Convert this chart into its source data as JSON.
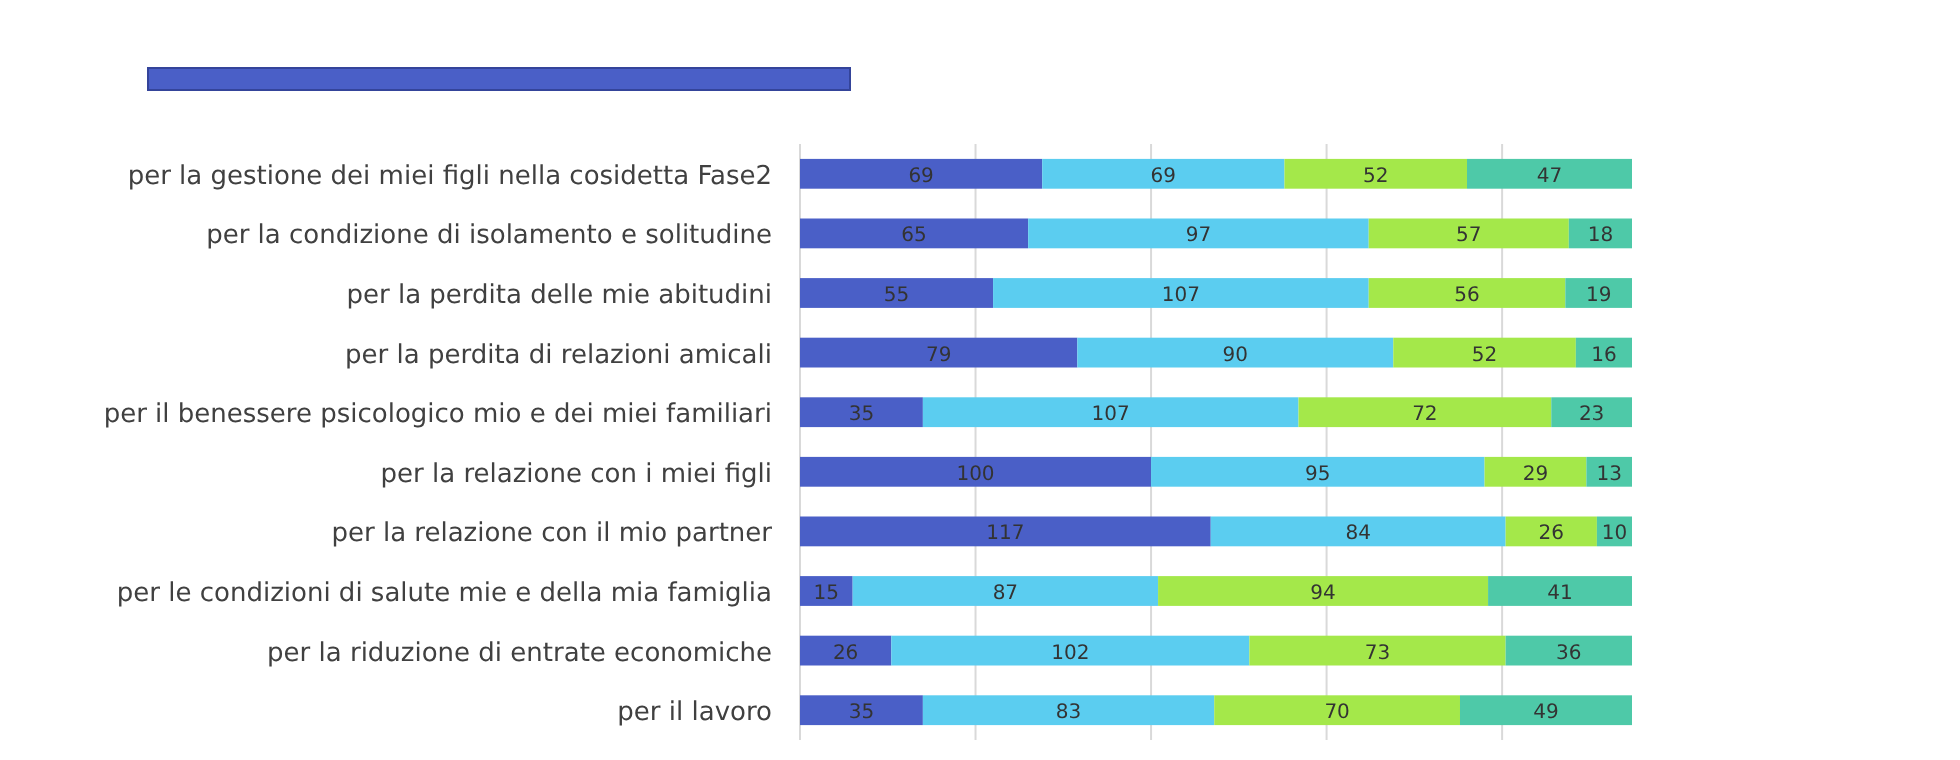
{
  "chart_data": {
    "type": "bar",
    "orientation": "horizontal",
    "stacked": true,
    "data_labels": true,
    "grid": "x",
    "tick_labels": "y",
    "categories": [
      "per la gestione dei miei figli nella cosidetta Fase2",
      "per la condizione di isolamento e solitudine",
      "per la perdita delle mie abitudini",
      "per la perdita di relazioni amicali",
      "per il benessere psicologico mio e dei miei familiari",
      "per la relazione con i miei figli",
      "per la relazione con il mio partner",
      "per le condizioni di salute mie e della mia famiglia",
      "per la riduzione di entrate economiche",
      "per il lavoro"
    ],
    "xlim": [
      0,
      237
    ],
    "xticks": [
      {
        "value": 0,
        "label": null
      },
      {
        "value": 50,
        "label": null
      },
      {
        "value": 100,
        "label": null
      },
      {
        "value": 150,
        "label": null
      },
      {
        "value": 200,
        "label": null
      }
    ],
    "series": [
      {
        "color": "#4a5fc7",
        "values": [
          69,
          65,
          55,
          79,
          35,
          100,
          117,
          15,
          26,
          35
        ]
      },
      {
        "color": "#5bcdf0",
        "values": [
          69,
          97,
          107,
          90,
          107,
          95,
          84,
          87,
          102,
          83
        ]
      },
      {
        "color": "#a4e84a",
        "values": [
          52,
          57,
          56,
          52,
          72,
          29,
          26,
          94,
          73,
          70
        ]
      },
      {
        "color": "#4ec9a8",
        "values": [
          47,
          18,
          19,
          16,
          23,
          13,
          10,
          41,
          36,
          49
        ]
      }
    ]
  }
}
